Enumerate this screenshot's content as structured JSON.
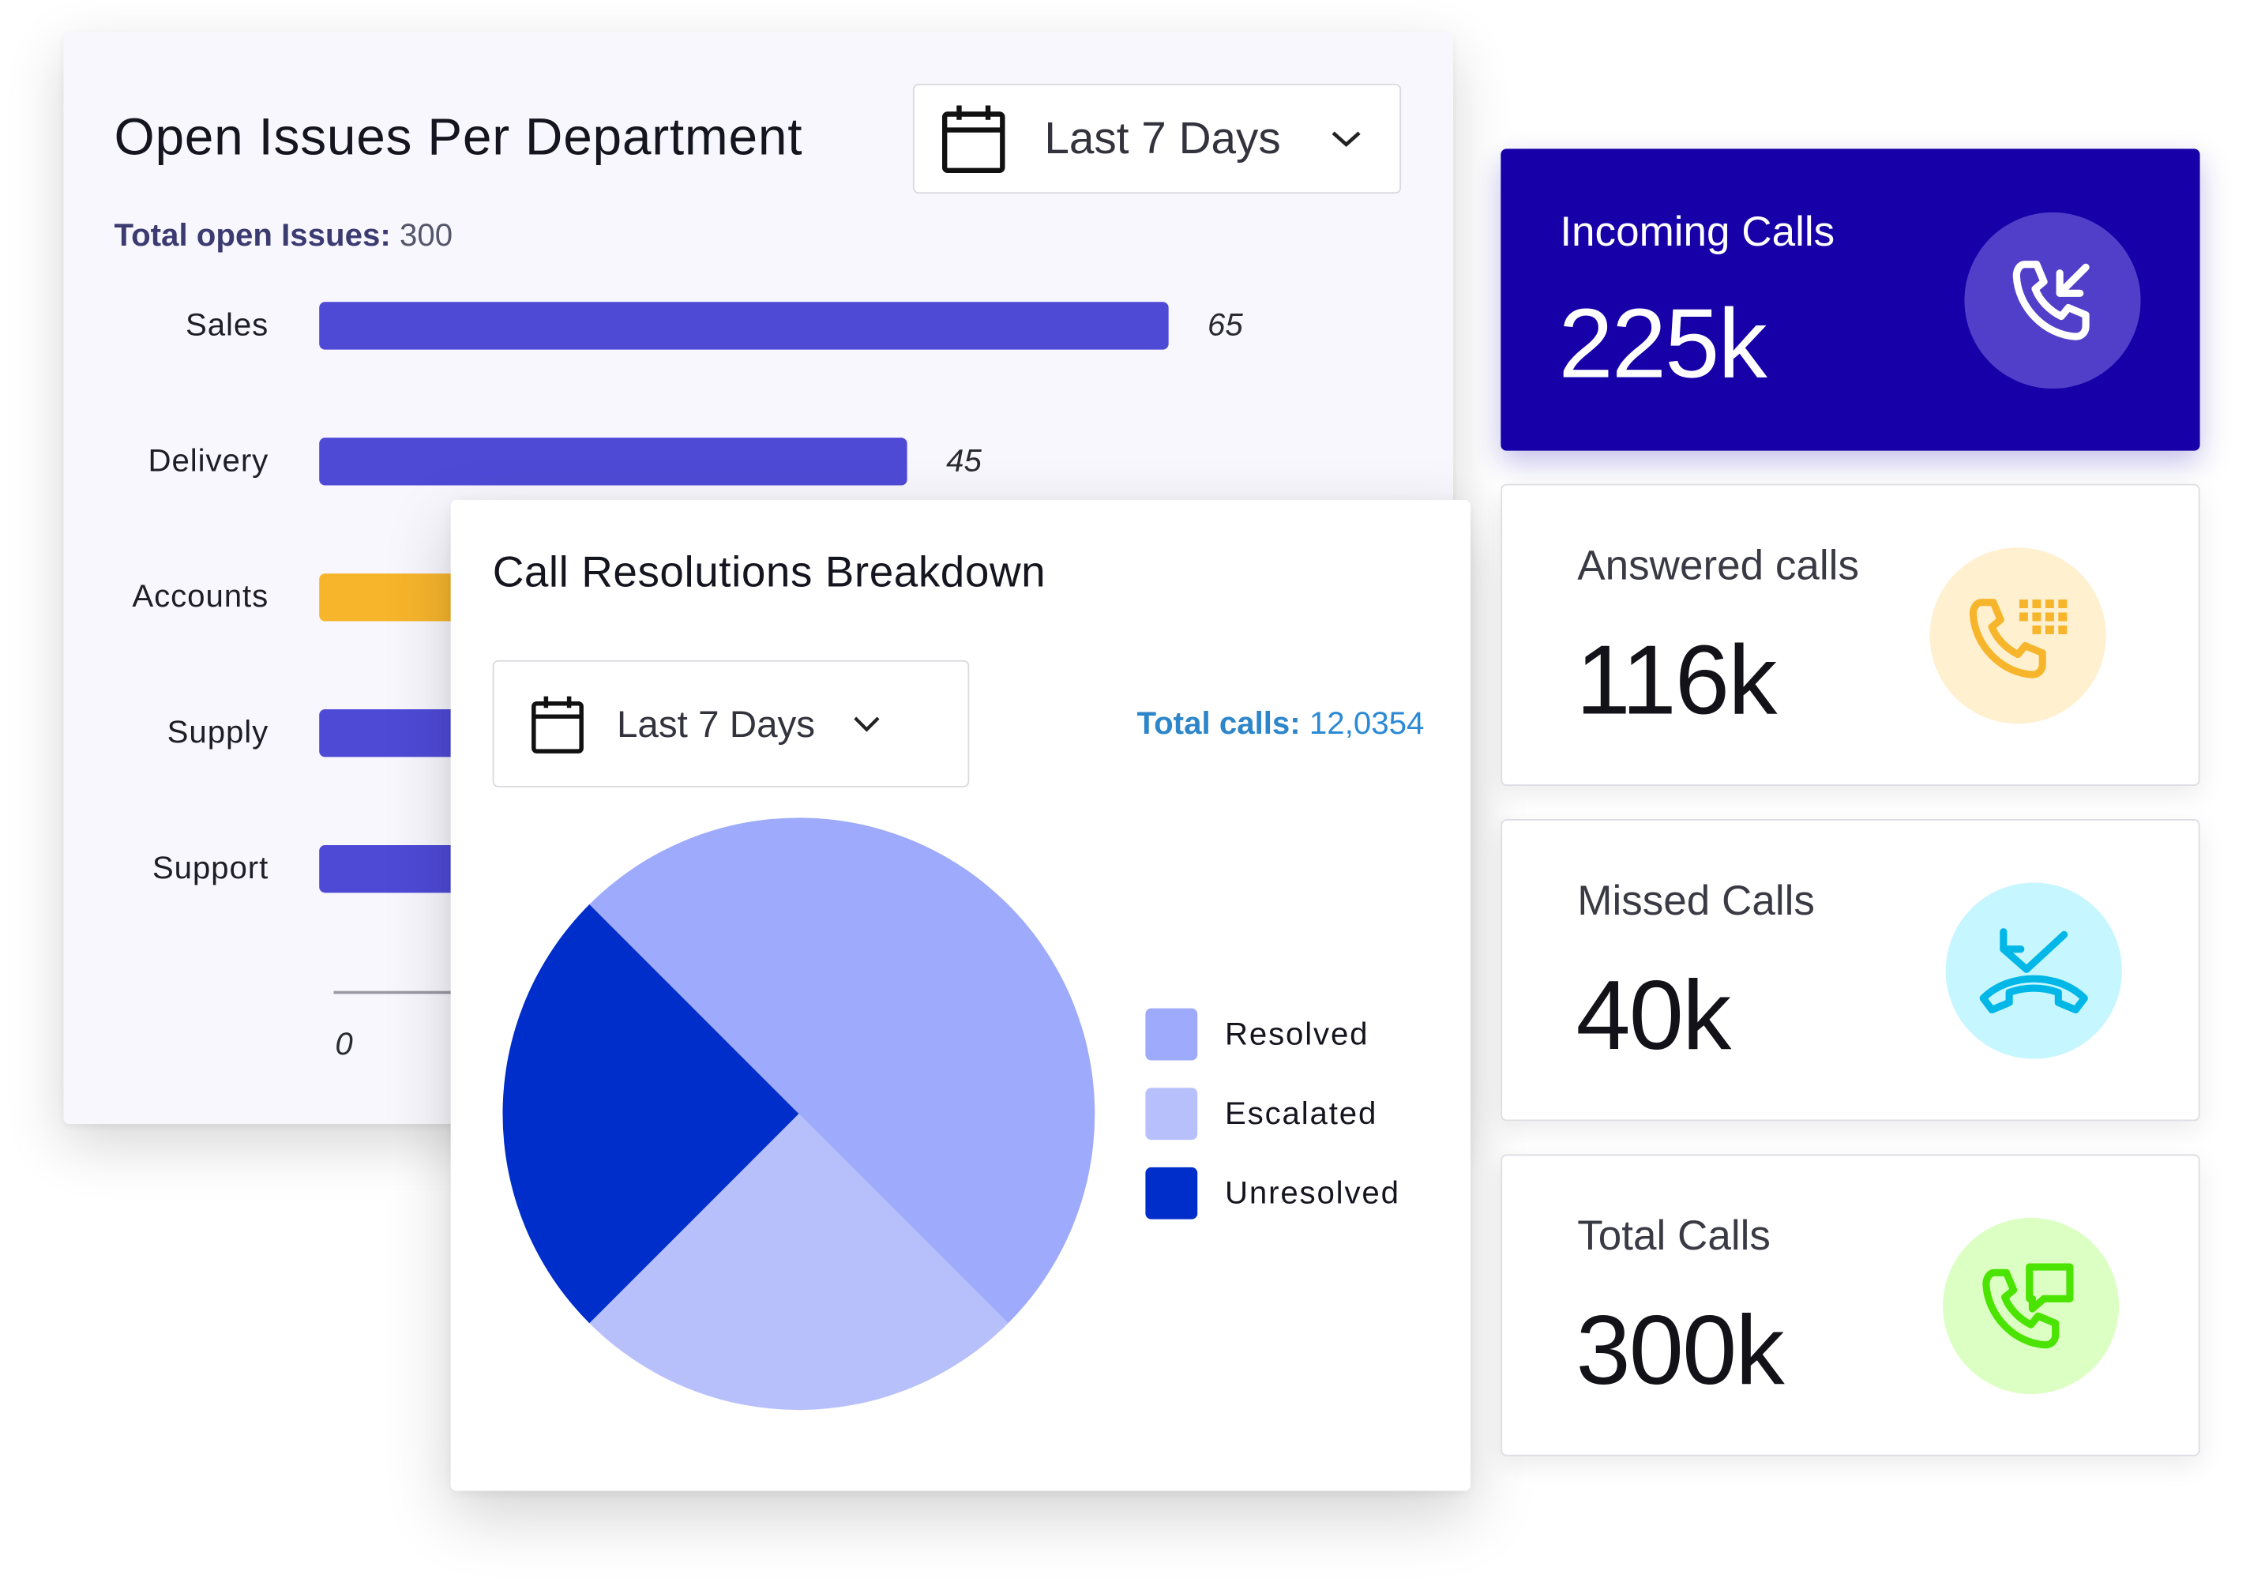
{
  "issues_card": {
    "title": "Open Issues Per Department",
    "date_filter": "Last 7 Days",
    "total_label": "Total open Issues:",
    "total_value": "300"
  },
  "chart_data": [
    {
      "type": "bar",
      "orientation": "horizontal",
      "title": "Open Issues Per Department",
      "categories": [
        "Sales",
        "Delivery",
        "Accounts",
        "Supply",
        "Support"
      ],
      "values": [
        65,
        45,
        null,
        null,
        null
      ],
      "value_labels": [
        "65",
        "45",
        "",
        "",
        ""
      ],
      "colors": [
        "#4f4ad6",
        "#4f4ad6",
        "#f7b52c",
        "#4f4ad6",
        "#4f4ad6"
      ],
      "axis_tick": "0",
      "xlim": [
        0,
        70
      ]
    },
    {
      "type": "pie",
      "title": "Call Resolutions Breakdown",
      "labels": [
        "Resolved",
        "Escalated",
        "Unresolved"
      ],
      "values": [
        50,
        25,
        25
      ],
      "colors": [
        "#9eaafb",
        "#b8c0fc",
        "#002ecb"
      ]
    }
  ],
  "pie_card": {
    "title": "Call Resolutions Breakdown",
    "date_filter": "Last 7 Days",
    "total_label": "Total calls:",
    "total_value": "12,0354"
  },
  "stats": {
    "incoming": {
      "label": "Incoming Calls",
      "value": "225k",
      "icon": "incoming-call-icon",
      "accent": "#1700a8"
    },
    "answered": {
      "label": "Answered calls",
      "value": "116k",
      "icon": "phone-keypad-icon",
      "accent": "#f7b52c"
    },
    "missed": {
      "label": "Missed Calls",
      "value": "40k",
      "icon": "missed-call-icon",
      "accent": "#00b7e8"
    },
    "total": {
      "label": "Total Calls",
      "value": "300k",
      "icon": "phone-message-icon",
      "accent": "#4be400"
    }
  },
  "colors": {
    "bar_primary": "#4f4ad6",
    "bar_accent": "#f7b52c",
    "total_calls_text": "#2b8ad6"
  }
}
